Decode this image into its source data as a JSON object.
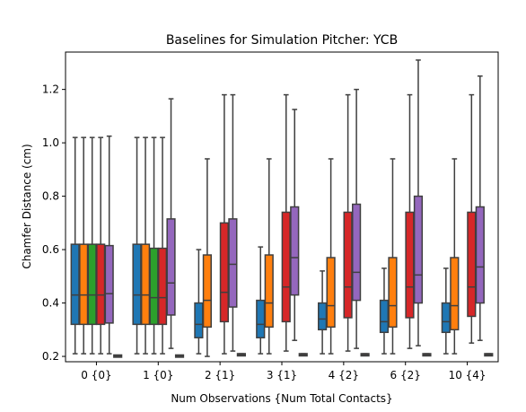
{
  "chart_data": {
    "type": "boxplot",
    "title": "Baselines for Simulation Pitcher: YCB",
    "xlabel": "Num Observations {Num Total Contacts}",
    "ylabel": "Chamfer Distance (cm)",
    "ylim": [
      0.18,
      1.34
    ],
    "yticks": [
      "0.2",
      "0.4",
      "0.6",
      "0.8",
      "1.0",
      "1.2"
    ],
    "grid": false,
    "categories": [
      "0 {0}",
      "1 {0}",
      "2 {1}",
      "3 {1}",
      "4 {2}",
      "6 {2}",
      "10 {4}"
    ],
    "colors": [
      "#1f77b4",
      "#ff7f0e",
      "#2ca02c",
      "#d62728",
      "#9467bd",
      "#8c564b"
    ],
    "groups": [
      {
        "boxes": [
          {
            "low": 0.21,
            "q1": 0.32,
            "med": 0.43,
            "q3": 0.62,
            "high": 1.02
          },
          {
            "low": 0.21,
            "q1": 0.32,
            "med": 0.43,
            "q3": 0.62,
            "high": 1.02
          },
          {
            "low": 0.21,
            "q1": 0.32,
            "med": 0.43,
            "q3": 0.62,
            "high": 1.02
          },
          {
            "low": 0.21,
            "q1": 0.32,
            "med": 0.43,
            "q3": 0.62,
            "high": 1.02
          },
          {
            "low": 0.21,
            "q1": 0.325,
            "med": 0.435,
            "q3": 0.615,
            "high": 1.025
          },
          {
            "low": 0.198,
            "q1": 0.2,
            "med": 0.201,
            "q3": 0.202,
            "high": 0.204
          }
        ]
      },
      {
        "boxes": [
          {
            "low": 0.21,
            "q1": 0.32,
            "med": 0.43,
            "q3": 0.62,
            "high": 1.02
          },
          {
            "low": 0.21,
            "q1": 0.32,
            "med": 0.43,
            "q3": 0.62,
            "high": 1.02
          },
          {
            "low": 0.21,
            "q1": 0.32,
            "med": 0.42,
            "q3": 0.605,
            "high": 1.02
          },
          {
            "low": 0.21,
            "q1": 0.32,
            "med": 0.42,
            "q3": 0.605,
            "high": 1.02
          },
          {
            "low": 0.23,
            "q1": 0.355,
            "med": 0.475,
            "q3": 0.715,
            "high": 1.165
          },
          {
            "low": 0.198,
            "q1": 0.2,
            "med": 0.201,
            "q3": 0.202,
            "high": 0.204
          }
        ]
      },
      {
        "boxes": [
          {
            "low": 0.21,
            "q1": 0.27,
            "med": 0.32,
            "q3": 0.4,
            "high": 0.6
          },
          {
            "low": 0.2,
            "q1": 0.31,
            "med": 0.41,
            "q3": 0.58,
            "high": 0.94
          },
          null,
          {
            "low": 0.21,
            "q1": 0.33,
            "med": 0.44,
            "q3": 0.7,
            "high": 1.18
          },
          {
            "low": 0.22,
            "q1": 0.385,
            "med": 0.545,
            "q3": 0.715,
            "high": 1.18
          },
          {
            "low": 0.203,
            "q1": 0.205,
            "med": 0.206,
            "q3": 0.207,
            "high": 0.21
          }
        ]
      },
      {
        "boxes": [
          {
            "low": 0.21,
            "q1": 0.27,
            "med": 0.32,
            "q3": 0.41,
            "high": 0.61
          },
          {
            "low": 0.21,
            "q1": 0.31,
            "med": 0.4,
            "q3": 0.58,
            "high": 0.94
          },
          null,
          {
            "low": 0.22,
            "q1": 0.33,
            "med": 0.46,
            "q3": 0.74,
            "high": 1.18
          },
          {
            "low": 0.26,
            "q1": 0.43,
            "med": 0.57,
            "q3": 0.76,
            "high": 1.125
          },
          {
            "low": 0.203,
            "q1": 0.205,
            "med": 0.206,
            "q3": 0.207,
            "high": 0.21
          }
        ]
      },
      {
        "boxes": [
          {
            "low": 0.21,
            "q1": 0.3,
            "med": 0.34,
            "q3": 0.4,
            "high": 0.52
          },
          {
            "low": 0.21,
            "q1": 0.31,
            "med": 0.39,
            "q3": 0.57,
            "high": 0.94
          },
          null,
          {
            "low": 0.22,
            "q1": 0.345,
            "med": 0.46,
            "q3": 0.74,
            "high": 1.18
          },
          {
            "low": 0.23,
            "q1": 0.41,
            "med": 0.515,
            "q3": 0.77,
            "high": 1.2
          },
          {
            "low": 0.203,
            "q1": 0.205,
            "med": 0.206,
            "q3": 0.207,
            "high": 0.21
          }
        ]
      },
      {
        "boxes": [
          {
            "low": 0.21,
            "q1": 0.29,
            "med": 0.33,
            "q3": 0.41,
            "high": 0.53
          },
          {
            "low": 0.21,
            "q1": 0.31,
            "med": 0.39,
            "q3": 0.57,
            "high": 0.94
          },
          null,
          {
            "low": 0.23,
            "q1": 0.345,
            "med": 0.46,
            "q3": 0.74,
            "high": 1.18
          },
          {
            "low": 0.24,
            "q1": 0.4,
            "med": 0.505,
            "q3": 0.8,
            "high": 1.31
          },
          {
            "low": 0.203,
            "q1": 0.205,
            "med": 0.206,
            "q3": 0.207,
            "high": 0.21
          }
        ]
      },
      {
        "boxes": [
          {
            "low": 0.21,
            "q1": 0.29,
            "med": 0.33,
            "q3": 0.4,
            "high": 0.53
          },
          {
            "low": 0.21,
            "q1": 0.3,
            "med": 0.39,
            "q3": 0.57,
            "high": 0.94
          },
          null,
          {
            "low": 0.25,
            "q1": 0.35,
            "med": 0.46,
            "q3": 0.74,
            "high": 1.18
          },
          {
            "low": 0.26,
            "q1": 0.4,
            "med": 0.535,
            "q3": 0.76,
            "high": 1.25
          },
          {
            "low": 0.203,
            "q1": 0.205,
            "med": 0.206,
            "q3": 0.207,
            "high": 0.21
          }
        ]
      }
    ]
  }
}
